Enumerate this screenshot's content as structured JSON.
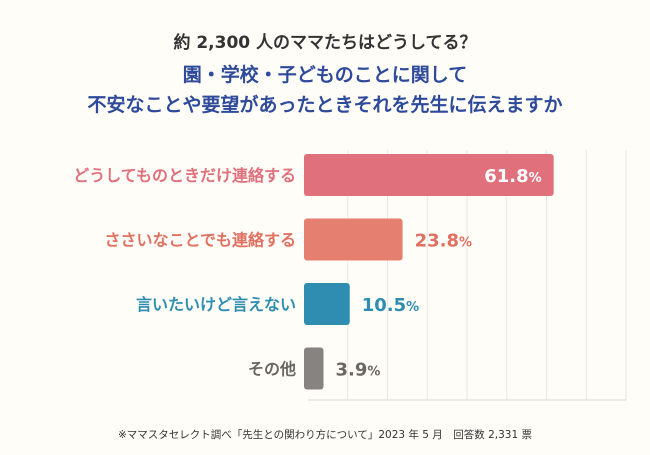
{
  "header": {
    "subtitle": "約 2,300 人のママたちはどうしてる？",
    "title_line1": "園・学校・子どものことに関して",
    "title_line2": "不安なことや要望があったときそれを先生に伝えますか"
  },
  "footer": {
    "note": "※ママスタセレクト調べ「先生との関わり方について」2023 年 5 月　回答数 2,331 票"
  },
  "chart_data": {
    "type": "bar",
    "orientation": "horizontal",
    "xlim": [
      0,
      80
    ],
    "grid": true,
    "xunit": "%",
    "categories": [
      "どうしてものときだけ連絡する",
      "ささいなことでも連絡する",
      "言いたいけど言えない",
      "その他"
    ],
    "values": [
      61.8,
      23.8,
      10.5,
      3.9
    ],
    "labels": [
      "61.8",
      "23.8",
      "10.5",
      "3.9"
    ],
    "colors": [
      "#e0707c",
      "#e58070",
      "#2e8db0",
      "#878380"
    ],
    "label_colors": [
      "#e0707c",
      "#e07060",
      "#2e8db0",
      "#6a6664"
    ]
  }
}
